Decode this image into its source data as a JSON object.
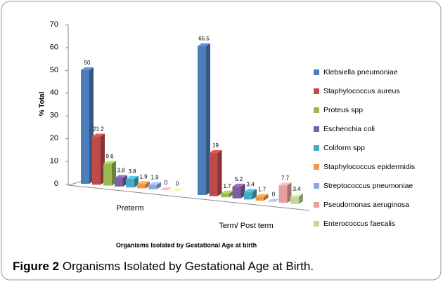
{
  "chart_data": {
    "type": "bar3d",
    "ylabel": "% Total",
    "xlabel": "Organisms Isolated by Gestational Age at birth",
    "categories": [
      "Preterm",
      "Term/ Post term"
    ],
    "ylim": [
      0,
      70
    ],
    "yticks": [
      0,
      10,
      20,
      30,
      40,
      50,
      60,
      70
    ],
    "series": [
      {
        "name": "Klebsiella pneumoniae",
        "color": "#4a7ebb",
        "values": [
          50,
          65.5
        ]
      },
      {
        "name": "Staphylococcus aureus",
        "color": "#be4b48",
        "values": [
          21.2,
          19
        ]
      },
      {
        "name": "Proteus spp",
        "color": "#98b954",
        "values": [
          9.6,
          1.7
        ]
      },
      {
        "name": "Escherichia coli",
        "color": "#7d60a0",
        "values": [
          3.8,
          5.2
        ]
      },
      {
        "name": "Coliform spp",
        "color": "#46aac5",
        "values": [
          3.8,
          3.4
        ]
      },
      {
        "name": "Staphylococcus epidermidis",
        "color": "#f79646",
        "values": [
          1.9,
          1.7
        ]
      },
      {
        "name": "Streptococcus pneumoniae",
        "color": "#8eaadb",
        "values": [
          1.9,
          0
        ]
      },
      {
        "name": "Pseudomonas aeruginosa",
        "color": "#e6a09e",
        "values": [
          0,
          7.7
        ]
      },
      {
        "name": "Enterococcus faecalis",
        "color": "#c3d69b",
        "values": [
          0,
          3.4
        ]
      }
    ]
  },
  "caption": {
    "label": "Figure 2",
    "text": "Organisms Isolated by Gestational Age at Birth."
  }
}
